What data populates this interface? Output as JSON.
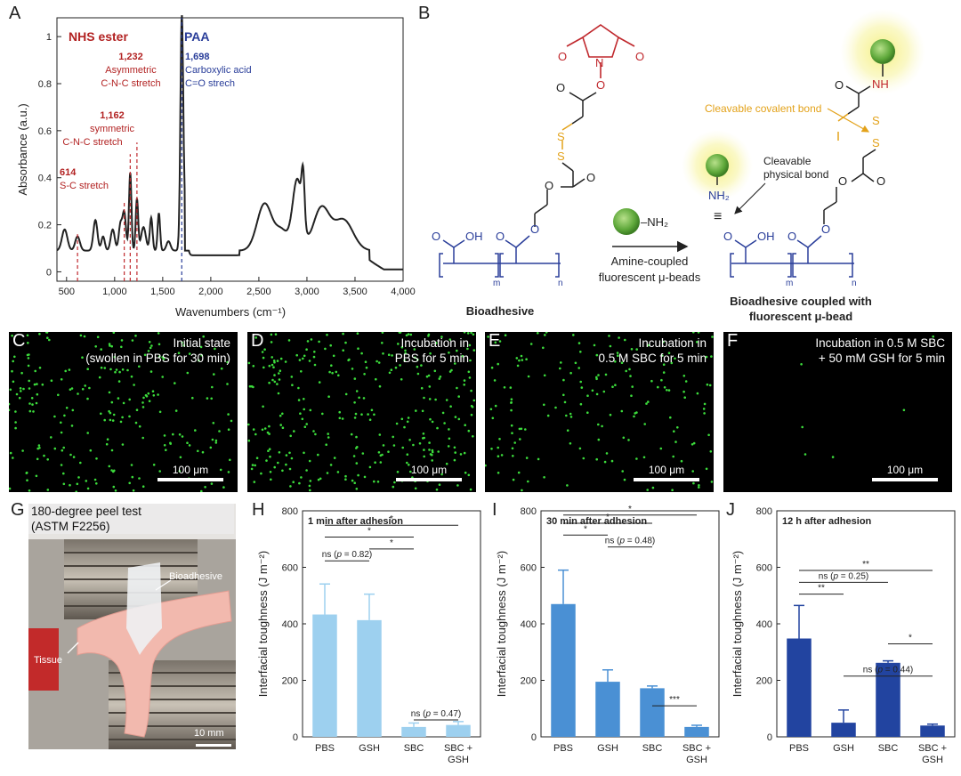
{
  "panel_labels": {
    "a": "A",
    "b": "B",
    "c": "C",
    "d": "D",
    "e": "E",
    "f": "F",
    "g": "G",
    "h": "H",
    "i": "I",
    "j": "J"
  },
  "spectrum": {
    "xlabel": "Wavenumbers (cm⁻¹)",
    "ylabel": "Absorbance (a.u.)",
    "xticks": [
      "500",
      "1,000",
      "1,500",
      "2,000",
      "2,500",
      "3,000",
      "3,500",
      "4,000"
    ],
    "yticks": [
      "0",
      "0.2",
      "0.4",
      "0.6",
      "0.8",
      "1"
    ],
    "nhs_title": "NHS ester",
    "paa_title": "PAA",
    "ann_614_num": "614",
    "ann_614_text": "S-C stretch",
    "ann_1162_num": "1,162",
    "ann_1162_l1": "symmetric",
    "ann_1162_l2": "C-N-C stretch",
    "ann_1232_num": "1,232",
    "ann_1232_l1": "Asymmetric",
    "ann_1232_l2": "C-N-C stretch",
    "ann_1698_num": "1,698",
    "ann_1698_l1": "Carboxylic acid",
    "ann_1698_l2": "C=O strech"
  },
  "scheme": {
    "left_label": "Bioadhesive",
    "right_label_l1": "Bioadhesive coupled with",
    "right_label_l2": "fluorescent μ-bead",
    "arrow_l1": "Amine-coupled",
    "arrow_l2": "fluorescent μ-beads",
    "cleavable_covalent": "Cleavable covalent bond",
    "cleavable_physical_l1": "Cleavable",
    "cleavable_physical_l2": "physical bond",
    "nh2": "NH₂",
    "nh": "NH",
    "oh": "OH",
    "o": "O",
    "n": "N",
    "s": "S",
    "m": "m",
    "n_sub": "n",
    "bead_group": "–NH₂",
    "triple": "≡"
  },
  "micrographs": [
    {
      "l1": "Initial state",
      "l2": "(swollen in PBS for 30 min)",
      "scale": "100 μm",
      "density": 0.75
    },
    {
      "l1": "Incubation in",
      "l2": "PBS for 5 min",
      "scale": "100 μm",
      "density": 1.0
    },
    {
      "l1": "Incubation in",
      "l2": "0.5 M SBC for 5 min",
      "scale": "100 μm",
      "density": 0.55
    },
    {
      "l1": "Incubation in 0.5 M SBC",
      "l2": "+ 50 mM GSH for 5 min",
      "scale": "100 μm",
      "density": 0.02
    }
  ],
  "photo": {
    "l1": "180-degree peel test",
    "l2": "(ASTM F2256)",
    "bioadhesive": "Bioadhesive",
    "tissue": "Tissue",
    "scale": "10 mm"
  },
  "chart_data": [
    {
      "type": "bar",
      "title": "1 min after adhesion",
      "ylabel": "Interfacial toughness (J m⁻²)",
      "categories": [
        "PBS",
        "GSH",
        "SBC",
        "SBC +\nGSH"
      ],
      "values": [
        433,
        413,
        35,
        42
      ],
      "errors": [
        108,
        92,
        14,
        12
      ],
      "ylim": [
        0,
        800
      ],
      "yticks": [
        0,
        200,
        400,
        600,
        800
      ],
      "color": "#9dd0ef",
      "significance": [
        {
          "from": 0,
          "to": 1,
          "label": "ns (p = 0.82)",
          "row": 1
        },
        {
          "from": 1,
          "to": 2,
          "label": "*",
          "row": 2
        },
        {
          "from": 0,
          "to": 2,
          "label": "*",
          "row": 3
        },
        {
          "from": 0,
          "to": 3,
          "label": "*",
          "row": 4
        },
        {
          "from": 2,
          "to": 3,
          "label": "ns (p = 0.47)",
          "row": 0
        }
      ]
    },
    {
      "type": "bar",
      "title": "30 min after adhesion",
      "ylabel": "Interfacial toughness (J m⁻²)",
      "categories": [
        "PBS",
        "GSH",
        "SBC",
        "SBC +\nGSH"
      ],
      "values": [
        470,
        195,
        172,
        35
      ],
      "errors": [
        120,
        42,
        8,
        6
      ],
      "ylim": [
        0,
        800
      ],
      "yticks": [
        0,
        200,
        400,
        600,
        800
      ],
      "color": "#4a90d4",
      "significance": [
        {
          "from": 0,
          "to": 1,
          "label": "*",
          "row": 2
        },
        {
          "from": 0,
          "to": 2,
          "label": "*",
          "row": 3
        },
        {
          "from": 0,
          "to": 3,
          "label": "*",
          "row": 4
        },
        {
          "from": 1,
          "to": 2,
          "label": "ns (p = 0.48)",
          "row": 1
        },
        {
          "from": 2,
          "to": 3,
          "label": "***",
          "row": 0
        }
      ]
    },
    {
      "type": "bar",
      "title": "12 h after adhesion",
      "ylabel": "Interfacial toughness (J m⁻²)",
      "categories": [
        "PBS",
        "GSH",
        "SBC",
        "SBC +\nGSH"
      ],
      "values": [
        348,
        50,
        262,
        40
      ],
      "errors": [
        117,
        45,
        7,
        5
      ],
      "ylim": [
        0,
        800
      ],
      "yticks": [
        0,
        200,
        400,
        600,
        800
      ],
      "color": "#2244a0",
      "significance": [
        {
          "from": 0,
          "to": 1,
          "label": "**",
          "row": 0
        },
        {
          "from": 0,
          "to": 2,
          "label": "ns (p = 0.25)",
          "row": 1
        },
        {
          "from": 0,
          "to": 3,
          "label": "**",
          "row": 2
        },
        {
          "from": 1,
          "to": 3,
          "label": "ns (p = 0.44)",
          "row": -1
        },
        {
          "from": 2,
          "to": 3,
          "label": "*",
          "row": -2
        }
      ]
    }
  ]
}
